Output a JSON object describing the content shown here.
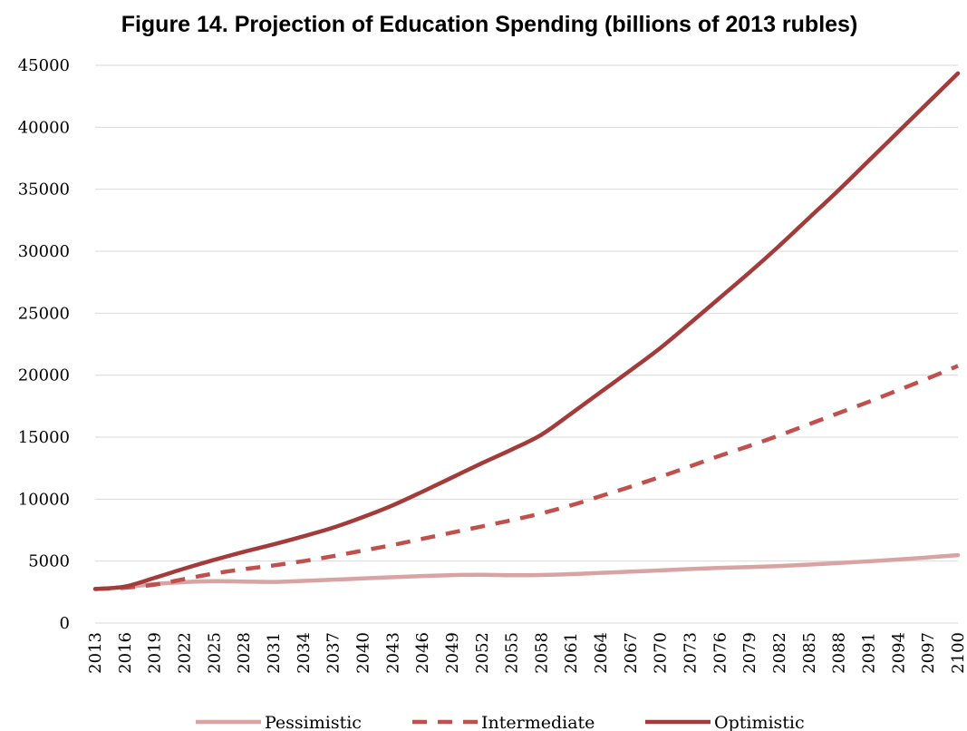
{
  "chart_data": {
    "type": "line",
    "title": "Figure 14.  Projection of Education Spending (billions of 2013 rubles)",
    "xlabel": "",
    "ylabel": "",
    "ylim": [
      0,
      45000
    ],
    "yticks": [
      0,
      5000,
      10000,
      15000,
      20000,
      25000,
      30000,
      35000,
      40000,
      45000
    ],
    "xlim": [
      2013,
      2100
    ],
    "xticks": [
      2013,
      2016,
      2019,
      2022,
      2025,
      2028,
      2031,
      2034,
      2037,
      2040,
      2043,
      2046,
      2049,
      2052,
      2055,
      2058,
      2061,
      2064,
      2067,
      2070,
      2073,
      2076,
      2079,
      2082,
      2085,
      2088,
      2091,
      2094,
      2097,
      2100
    ],
    "grid": true,
    "legend_position": "bottom",
    "x": [
      2013,
      2016,
      2019,
      2022,
      2025,
      2028,
      2031,
      2034,
      2037,
      2040,
      2043,
      2046,
      2049,
      2052,
      2055,
      2058,
      2061,
      2064,
      2067,
      2070,
      2073,
      2076,
      2079,
      2082,
      2085,
      2088,
      2091,
      2094,
      2097,
      2100
    ],
    "series": [
      {
        "name": "Pessimistic",
        "color": "#d9a3a3",
        "style": "solid",
        "values": [
          2750,
          2900,
          3150,
          3300,
          3380,
          3350,
          3320,
          3400,
          3500,
          3600,
          3700,
          3800,
          3870,
          3900,
          3860,
          3880,
          3950,
          4050,
          4150,
          4250,
          4360,
          4450,
          4520,
          4600,
          4720,
          4850,
          4980,
          5130,
          5300,
          5480
        ]
      },
      {
        "name": "Intermediate",
        "color": "#c0504d",
        "style": "dashed",
        "values": [
          2750,
          2850,
          3100,
          3550,
          4000,
          4350,
          4650,
          5000,
          5400,
          5850,
          6300,
          6800,
          7300,
          7800,
          8300,
          8850,
          9500,
          10250,
          11000,
          11800,
          12650,
          13500,
          14300,
          15150,
          16050,
          16950,
          17850,
          18800,
          19750,
          20750
        ]
      },
      {
        "name": "Optimistic",
        "color": "#a33b3b",
        "style": "solid",
        "values": [
          2750,
          2950,
          3650,
          4400,
          5100,
          5750,
          6350,
          7000,
          7700,
          8550,
          9500,
          10600,
          11750,
          12900,
          14000,
          15200,
          16900,
          18650,
          20400,
          22200,
          24200,
          26250,
          28300,
          30450,
          32700,
          34950,
          37300,
          39650,
          42000,
          44350
        ]
      }
    ]
  }
}
